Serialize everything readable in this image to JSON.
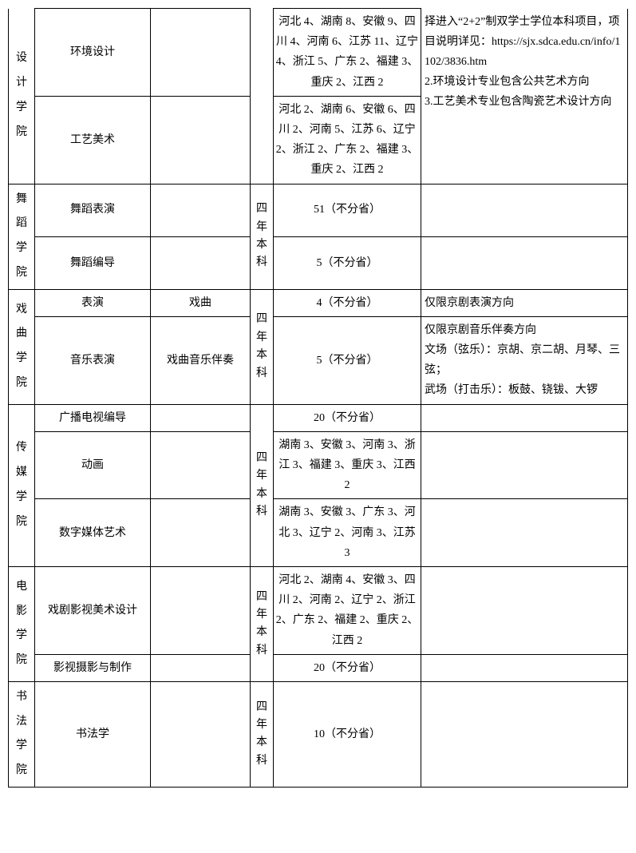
{
  "colleges": {
    "design": {
      "name": [
        "设",
        "计",
        "学",
        "院"
      ]
    },
    "dance": {
      "name": [
        "舞",
        "蹈",
        "学",
        "院"
      ]
    },
    "opera": {
      "name": [
        "戏",
        "曲",
        "学",
        "院"
      ]
    },
    "media": {
      "name": [
        "传",
        "媒",
        "学",
        "院"
      ]
    },
    "film": {
      "name": [
        "电",
        "影",
        "学",
        "院"
      ]
    },
    "calli": {
      "name": [
        "书",
        "法",
        "学",
        "院"
      ]
    }
  },
  "duration": {
    "four": [
      "四",
      "年",
      "本",
      "科"
    ]
  },
  "rows": {
    "envdesign": {
      "major": "环境设计",
      "quota": "河北 4、湖南 8、安徽 9、四川 4、河南 6、江苏 11、辽宁 4、浙江 5、广东 2、福建 3、重庆 2、江西 2"
    },
    "craft": {
      "major": "工艺美术",
      "quota": "河北 2、湖南 6、安徽 6、四川 2、河南 5、江苏 6、辽宁 2、浙江 2、广东 2、福建 3、重庆 2、江西 2"
    },
    "danceperf": {
      "major": "舞蹈表演",
      "quota": "51（不分省）"
    },
    "dancechoreo": {
      "major": "舞蹈编导",
      "quota": "5（不分省）"
    },
    "perform": {
      "major": "表演",
      "direction": "戏曲",
      "quota": "4（不分省）",
      "note": "仅限京剧表演方向"
    },
    "musicperf": {
      "major": "音乐表演",
      "direction": "戏曲音乐伴奏",
      "quota": "5（不分省）",
      "note": "仅限京剧音乐伴奏方向\n文场（弦乐）：京胡、京二胡、月琴、三弦；\n武场（打击乐）：板鼓、铙钹、大锣"
    },
    "broadcast": {
      "major": "广播电视编导",
      "quota": "20（不分省）"
    },
    "animation": {
      "major": "动画",
      "quota": "湖南 3、安徽 3、河南 3、浙江 3、福建 3、重庆 3、江西 2"
    },
    "digitalmedia": {
      "major": "数字媒体艺术",
      "quota": "湖南 3、安徽 3、广东 3、河北 3、辽宁 2、河南 3、江苏 3"
    },
    "dramaart": {
      "major": "戏剧影视美术设计",
      "quota": "河北 2、湖南 4、安徽 3、四川 2、河南 2、辽宁 2、浙江 2、广东 2、福建 2、重庆 2、江西 2"
    },
    "filmphoto": {
      "major": "影视摄影与制作",
      "quota": "20（不分省）"
    },
    "calligraphy": {
      "major": "书法学",
      "quota": "10（不分省）"
    }
  },
  "design_note": "择进入“2+2”制双学士学位本科项目，项目说明详见：https://sjx.sdca.edu.cn/info/1102/3836.htm\n2.环境设计专业包含公共艺术方向\n3.工艺美术专业包含陶瓷艺术设计方向"
}
